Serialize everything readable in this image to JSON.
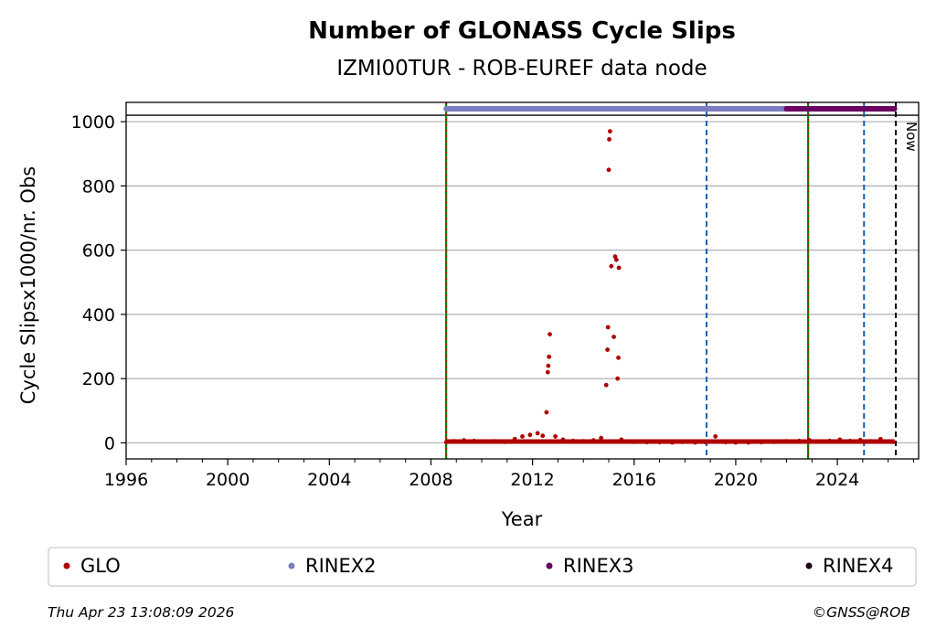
{
  "chart_data": {
    "type": "scatter",
    "title": "Number of GLONASS Cycle Slips",
    "subtitle": "IZMI00TUR - ROB-EUREF data node",
    "xlabel": "Year",
    "ylabel": "Cycle Slipsx1000/nr. Obs",
    "xlim": [
      1996,
      2027.2
    ],
    "ylim": [
      -50,
      1060
    ],
    "xticks": [
      1996,
      2000,
      2004,
      2008,
      2012,
      2016,
      2020,
      2024
    ],
    "yticks": [
      0,
      200,
      400,
      600,
      800,
      1000
    ],
    "grid": "horizontal",
    "series": [
      {
        "name": "GLO",
        "color": "#b00000",
        "x": [
          2008.6,
          2008.9,
          2009.3,
          2009.7,
          2010.1,
          2010.5,
          2010.9,
          2011.3,
          2011.6,
          2011.9,
          2012.2,
          2012.4,
          2012.55,
          2012.6,
          2012.62,
          2012.65,
          2012.68,
          2012.9,
          2013.2,
          2013.6,
          2014.0,
          2014.4,
          2014.7,
          2014.9,
          2014.95,
          2014.97,
          2015.0,
          2015.02,
          2015.05,
          2015.1,
          2015.2,
          2015.25,
          2015.3,
          2015.35,
          2015.38,
          2015.4,
          2015.5,
          2015.7,
          2016.0,
          2016.5,
          2017.0,
          2017.5,
          2017.9,
          2018.4,
          2018.8,
          2019.2,
          2019.6,
          2020.0,
          2020.5,
          2021.0,
          2021.5,
          2022.0,
          2022.5,
          2022.9,
          2023.3,
          2023.7,
          2024.1,
          2024.5,
          2024.9,
          2025.3,
          2025.7,
          2026.0,
          2026.2
        ],
        "values": [
          2,
          5,
          8,
          6,
          4,
          5,
          3,
          12,
          20,
          25,
          30,
          22,
          95,
          220,
          240,
          268,
          338,
          20,
          10,
          6,
          5,
          8,
          15,
          180,
          290,
          360,
          850,
          945,
          970,
          550,
          330,
          580,
          570,
          200,
          265,
          545,
          10,
          4,
          3,
          2,
          2,
          1,
          3,
          1,
          2,
          20,
          2,
          1,
          1,
          2,
          3,
          5,
          6,
          8,
          4,
          6,
          10,
          6,
          9,
          5,
          12,
          4,
          3
        ]
      },
      {
        "name": "RINEX2",
        "color": "#7b7bbd",
        "x_start": 2008.6,
        "x_end": 2022.3,
        "y": 1040
      },
      {
        "name": "RINEX3",
        "color": "#6a0060",
        "x_start": 2022.0,
        "x_end": 2026.25,
        "y": 1040
      },
      {
        "name": "RINEX4",
        "color": "#1a0018",
        "x_start": null,
        "x_end": null,
        "y": 1040
      }
    ],
    "vlines": [
      {
        "x": 2008.6,
        "style": "green-red"
      },
      {
        "x": 2018.85,
        "style": "blue-dashed"
      },
      {
        "x": 2022.85,
        "style": "green-red"
      },
      {
        "x": 2025.05,
        "style": "blue-dashed"
      },
      {
        "x": 2026.3,
        "style": "black-dashed",
        "label": "Now"
      }
    ],
    "hline_top": 1020
  },
  "legend": [
    {
      "label": "GLO",
      "color": "#b00000"
    },
    {
      "label": "RINEX2",
      "color": "#7b7bbd"
    },
    {
      "label": "RINEX3",
      "color": "#6a0060"
    },
    {
      "label": "RINEX4",
      "color": "#1a0018"
    }
  ],
  "footer": {
    "timestamp": "Thu Apr 23 13:08:09 2026",
    "copyright": "©GNSS@ROB"
  }
}
